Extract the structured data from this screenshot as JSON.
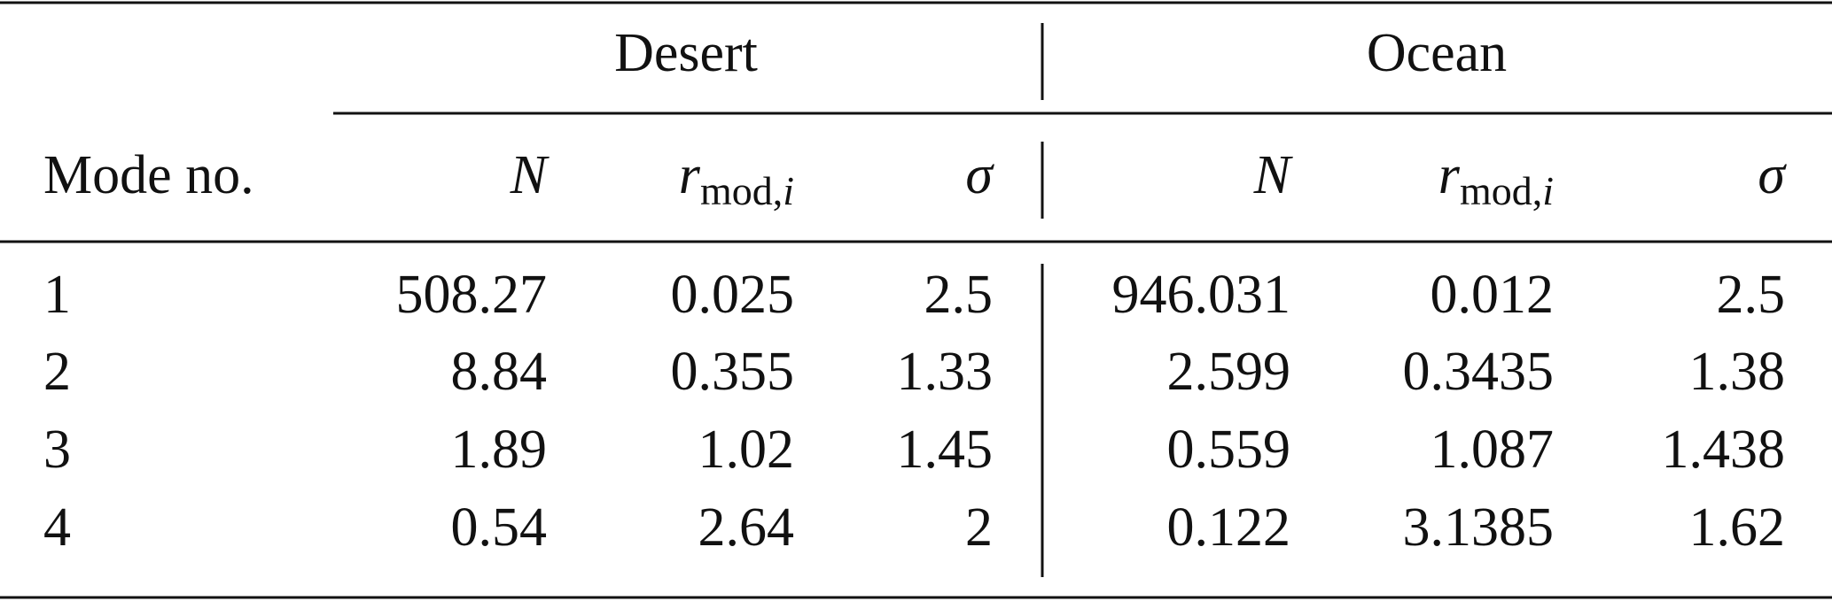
{
  "table": {
    "groups": [
      "Desert",
      "Ocean"
    ],
    "header": {
      "first": "Mode no.",
      "columns": [
        {
          "symbol": "N"
        },
        {
          "symbol": "r",
          "sub": "mod,",
          "sub_index": "i"
        },
        {
          "symbol": "σ"
        },
        {
          "symbol": "N"
        },
        {
          "symbol": "r",
          "sub": "mod,",
          "sub_index": "i"
        },
        {
          "symbol": "σ"
        }
      ]
    },
    "rows": [
      [
        "1",
        "508.27",
        "0.025",
        "2.5",
        "946.031",
        "0.012",
        "2.5"
      ],
      [
        "2",
        "8.84",
        "0.355",
        "1.33",
        "2.599",
        "0.3435",
        "1.38"
      ],
      [
        "3",
        "1.89",
        "1.02",
        "1.45",
        "0.559",
        "1.087",
        "1.438"
      ],
      [
        "4",
        "0.54",
        "2.64",
        "2",
        "0.122",
        "3.1385",
        "1.62"
      ]
    ]
  }
}
